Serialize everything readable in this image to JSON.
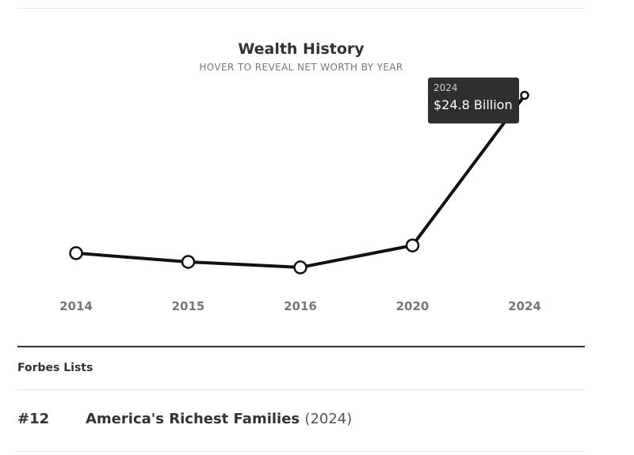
{
  "chart_data": {
    "type": "line",
    "title": "Wealth History",
    "subtitle": "HOVER TO REVEAL NET WORTH BY YEAR",
    "x": [
      "2014",
      "2015",
      "2016",
      "2020",
      "2024"
    ],
    "values": [
      10.4,
      9.6,
      9.1,
      11.1,
      24.8
    ],
    "ylim": [
      7,
      27
    ],
    "grid": false,
    "legend": "none",
    "tooltip": {
      "year": "2024",
      "value": "$24.8 Billion"
    },
    "colors": {
      "line": "#111111",
      "marker_fill": "#ffffff",
      "tick_label": "#777777",
      "tooltip_bg": "#2f2f2f"
    }
  },
  "forbes_lists": {
    "heading": "Forbes Lists",
    "items": [
      {
        "rank": "#12",
        "name": "America's Richest Families",
        "year": "(2024)"
      }
    ]
  }
}
